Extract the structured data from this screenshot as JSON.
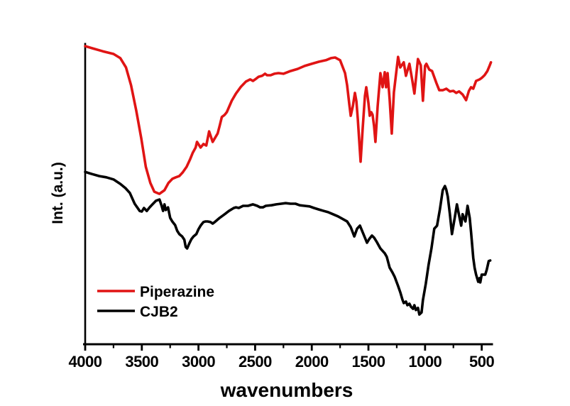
{
  "chart_data": {
    "type": "line",
    "title": "",
    "xlabel": "wavenumbers",
    "ylabel": "Int. (a.u.)",
    "x_axis": {
      "min": 410,
      "max": 4000,
      "reversed": true,
      "major_ticks": [
        4000,
        3500,
        3000,
        2500,
        2000,
        1500,
        1000,
        500
      ],
      "tick_labels": [
        "4000",
        "3500",
        "3000",
        "2500",
        "2000",
        "1500",
        "1000",
        "500"
      ],
      "minor_ticks": [
        3750,
        3250,
        2750,
        2250,
        1750,
        1250,
        750
      ]
    },
    "y_axis": {
      "min": 0,
      "max": 1,
      "ticks": "none",
      "tick_labels": []
    },
    "grid": false,
    "legend": {
      "position": "inside-bottom-left",
      "entries": [
        {
          "label": "Piperazine",
          "color": "#e01414"
        },
        {
          "label": "CJB2",
          "color": "#000000"
        }
      ]
    },
    "series": [
      {
        "name": "Piperazine",
        "color": "#e01414",
        "points": [
          [
            4000,
            0.993
          ],
          [
            3940,
            0.986
          ],
          [
            3845,
            0.976
          ],
          [
            3750,
            0.967
          ],
          [
            3690,
            0.953
          ],
          [
            3640,
            0.922
          ],
          [
            3595,
            0.863
          ],
          [
            3550,
            0.78
          ],
          [
            3505,
            0.686
          ],
          [
            3465,
            0.591
          ],
          [
            3425,
            0.537
          ],
          [
            3390,
            0.508
          ],
          [
            3345,
            0.501
          ],
          [
            3300,
            0.513
          ],
          [
            3265,
            0.537
          ],
          [
            3230,
            0.551
          ],
          [
            3200,
            0.556
          ],
          [
            3170,
            0.56
          ],
          [
            3140,
            0.572
          ],
          [
            3105,
            0.591
          ],
          [
            3075,
            0.615
          ],
          [
            3050,
            0.638
          ],
          [
            3025,
            0.655
          ],
          [
            3013,
            0.674
          ],
          [
            2981,
            0.655
          ],
          [
            2956,
            0.667
          ],
          [
            2931,
            0.662
          ],
          [
            2906,
            0.709
          ],
          [
            2875,
            0.674
          ],
          [
            2831,
            0.702
          ],
          [
            2813,
            0.728
          ],
          [
            2794,
            0.757
          ],
          [
            2769,
            0.764
          ],
          [
            2750,
            0.773
          ],
          [
            2706,
            0.811
          ],
          [
            2669,
            0.835
          ],
          [
            2625,
            0.858
          ],
          [
            2581,
            0.875
          ],
          [
            2544,
            0.882
          ],
          [
            2519,
            0.877
          ],
          [
            2500,
            0.882
          ],
          [
            2469,
            0.891
          ],
          [
            2438,
            0.894
          ],
          [
            2413,
            0.901
          ],
          [
            2394,
            0.896
          ],
          [
            2363,
            0.896
          ],
          [
            2331,
            0.901
          ],
          [
            2294,
            0.903
          ],
          [
            2250,
            0.901
          ],
          [
            2188,
            0.91
          ],
          [
            2125,
            0.917
          ],
          [
            2063,
            0.927
          ],
          [
            2000,
            0.934
          ],
          [
            1938,
            0.941
          ],
          [
            1875,
            0.946
          ],
          [
            1831,
            0.953
          ],
          [
            1794,
            0.955
          ],
          [
            1750,
            0.946
          ],
          [
            1731,
            0.927
          ],
          [
            1706,
            0.903
          ],
          [
            1688,
            0.863
          ],
          [
            1669,
            0.799
          ],
          [
            1656,
            0.761
          ],
          [
            1638,
            0.792
          ],
          [
            1619,
            0.837
          ],
          [
            1606,
            0.809
          ],
          [
            1594,
            0.752
          ],
          [
            1569,
            0.608
          ],
          [
            1550,
            0.721
          ],
          [
            1531,
            0.827
          ],
          [
            1519,
            0.856
          ],
          [
            1500,
            0.804
          ],
          [
            1488,
            0.761
          ],
          [
            1475,
            0.773
          ],
          [
            1463,
            0.764
          ],
          [
            1450,
            0.726
          ],
          [
            1438,
            0.674
          ],
          [
            1419,
            0.792
          ],
          [
            1394,
            0.903
          ],
          [
            1375,
            0.856
          ],
          [
            1356,
            0.906
          ],
          [
            1344,
            0.856
          ],
          [
            1331,
            0.903
          ],
          [
            1313,
            0.816
          ],
          [
            1294,
            0.702
          ],
          [
            1275,
            0.839
          ],
          [
            1238,
            0.957
          ],
          [
            1219,
            0.922
          ],
          [
            1188,
            0.939
          ],
          [
            1169,
            0.894
          ],
          [
            1138,
            0.934
          ],
          [
            1113,
            0.879
          ],
          [
            1094,
            0.835
          ],
          [
            1063,
            0.95
          ],
          [
            1038,
            0.929
          ],
          [
            1019,
            0.811
          ],
          [
            1000,
            0.927
          ],
          [
            988,
            0.934
          ],
          [
            963,
            0.915
          ],
          [
            938,
            0.91
          ],
          [
            900,
            0.87
          ],
          [
            875,
            0.846
          ],
          [
            844,
            0.846
          ],
          [
            813,
            0.851
          ],
          [
            781,
            0.842
          ],
          [
            750,
            0.844
          ],
          [
            725,
            0.837
          ],
          [
            700,
            0.842
          ],
          [
            669,
            0.832
          ],
          [
            638,
            0.813
          ],
          [
            613,
            0.844
          ],
          [
            594,
            0.856
          ],
          [
            575,
            0.851
          ],
          [
            550,
            0.877
          ],
          [
            519,
            0.882
          ],
          [
            500,
            0.887
          ],
          [
            475,
            0.896
          ],
          [
            450,
            0.91
          ],
          [
            431,
            0.927
          ],
          [
            419,
            0.939
          ]
        ]
      },
      {
        "name": "CJB2",
        "color": "#000000",
        "points": [
          [
            4000,
            0.574
          ],
          [
            3940,
            0.567
          ],
          [
            3875,
            0.56
          ],
          [
            3813,
            0.556
          ],
          [
            3750,
            0.549
          ],
          [
            3690,
            0.534
          ],
          [
            3645,
            0.52
          ],
          [
            3606,
            0.504
          ],
          [
            3563,
            0.468
          ],
          [
            3519,
            0.444
          ],
          [
            3500,
            0.442
          ],
          [
            3481,
            0.454
          ],
          [
            3456,
            0.444
          ],
          [
            3431,
            0.456
          ],
          [
            3406,
            0.466
          ],
          [
            3375,
            0.478
          ],
          [
            3344,
            0.482
          ],
          [
            3325,
            0.461
          ],
          [
            3313,
            0.444
          ],
          [
            3300,
            0.466
          ],
          [
            3288,
            0.447
          ],
          [
            3269,
            0.456
          ],
          [
            3250,
            0.421
          ],
          [
            3231,
            0.409
          ],
          [
            3206,
            0.397
          ],
          [
            3188,
            0.378
          ],
          [
            3169,
            0.367
          ],
          [
            3144,
            0.359
          ],
          [
            3125,
            0.348
          ],
          [
            3113,
            0.324
          ],
          [
            3100,
            0.319
          ],
          [
            3081,
            0.336
          ],
          [
            3063,
            0.35
          ],
          [
            3044,
            0.359
          ],
          [
            3019,
            0.367
          ],
          [
            3000,
            0.383
          ],
          [
            2981,
            0.395
          ],
          [
            2956,
            0.407
          ],
          [
            2938,
            0.409
          ],
          [
            2919,
            0.409
          ],
          [
            2894,
            0.407
          ],
          [
            2875,
            0.402
          ],
          [
            2856,
            0.407
          ],
          [
            2813,
            0.421
          ],
          [
            2769,
            0.433
          ],
          [
            2731,
            0.444
          ],
          [
            2688,
            0.454
          ],
          [
            2669,
            0.456
          ],
          [
            2644,
            0.454
          ],
          [
            2606,
            0.461
          ],
          [
            2563,
            0.461
          ],
          [
            2519,
            0.466
          ],
          [
            2481,
            0.461
          ],
          [
            2456,
            0.456
          ],
          [
            2431,
            0.456
          ],
          [
            2406,
            0.461
          ],
          [
            2356,
            0.463
          ],
          [
            2313,
            0.466
          ],
          [
            2269,
            0.468
          ],
          [
            2231,
            0.47
          ],
          [
            2188,
            0.468
          ],
          [
            2144,
            0.468
          ],
          [
            2106,
            0.463
          ],
          [
            2063,
            0.461
          ],
          [
            2019,
            0.459
          ],
          [
            1981,
            0.454
          ],
          [
            1938,
            0.449
          ],
          [
            1894,
            0.444
          ],
          [
            1856,
            0.44
          ],
          [
            1813,
            0.433
          ],
          [
            1769,
            0.426
          ],
          [
            1731,
            0.418
          ],
          [
            1688,
            0.409
          ],
          [
            1656,
            0.39
          ],
          [
            1625,
            0.359
          ],
          [
            1600,
            0.385
          ],
          [
            1575,
            0.395
          ],
          [
            1544,
            0.367
          ],
          [
            1513,
            0.338
          ],
          [
            1494,
            0.35
          ],
          [
            1469,
            0.362
          ],
          [
            1450,
            0.355
          ],
          [
            1425,
            0.34
          ],
          [
            1394,
            0.319
          ],
          [
            1356,
            0.303
          ],
          [
            1338,
            0.291
          ],
          [
            1313,
            0.255
          ],
          [
            1288,
            0.239
          ],
          [
            1269,
            0.225
          ],
          [
            1238,
            0.194
          ],
          [
            1219,
            0.173
          ],
          [
            1200,
            0.149
          ],
          [
            1188,
            0.137
          ],
          [
            1169,
            0.142
          ],
          [
            1156,
            0.13
          ],
          [
            1138,
            0.135
          ],
          [
            1125,
            0.125
          ],
          [
            1106,
            0.118
          ],
          [
            1094,
            0.13
          ],
          [
            1081,
            0.114
          ],
          [
            1063,
            0.121
          ],
          [
            1050,
            0.099
          ],
          [
            1031,
            0.106
          ],
          [
            1019,
            0.147
          ],
          [
            994,
            0.201
          ],
          [
            969,
            0.265
          ],
          [
            944,
            0.319
          ],
          [
            919,
            0.385
          ],
          [
            906,
            0.39
          ],
          [
            894,
            0.395
          ],
          [
            869,
            0.449
          ],
          [
            844,
            0.513
          ],
          [
            825,
            0.527
          ],
          [
            813,
            0.515
          ],
          [
            800,
            0.492
          ],
          [
            781,
            0.433
          ],
          [
            763,
            0.367
          ],
          [
            738,
            0.421
          ],
          [
            719,
            0.466
          ],
          [
            700,
            0.43
          ],
          [
            681,
            0.395
          ],
          [
            669,
            0.433
          ],
          [
            644,
            0.409
          ],
          [
            625,
            0.461
          ],
          [
            606,
            0.421
          ],
          [
            594,
            0.374
          ],
          [
            575,
            0.288
          ],
          [
            563,
            0.255
          ],
          [
            550,
            0.232
          ],
          [
            531,
            0.208
          ],
          [
            519,
            0.22
          ],
          [
            513,
            0.206
          ],
          [
            500,
            0.232
          ],
          [
            488,
            0.232
          ],
          [
            469,
            0.232
          ],
          [
            456,
            0.248
          ],
          [
            438,
            0.277
          ],
          [
            425,
            0.279
          ]
        ]
      }
    ]
  }
}
